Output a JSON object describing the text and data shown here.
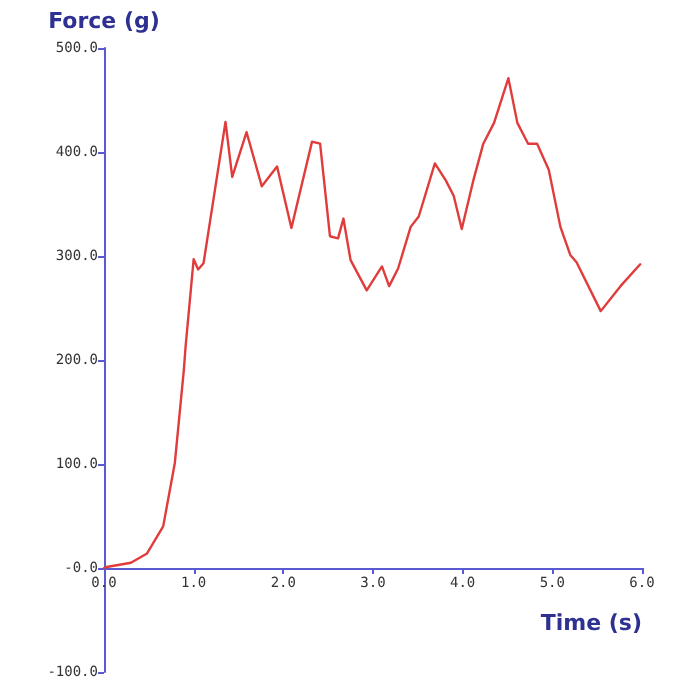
{
  "chart_data": {
    "type": "line",
    "xlabel": "Time (s)",
    "ylabel": "Force (g)",
    "grid": false,
    "marker": "none",
    "line_style": "solid",
    "xlim": [
      0,
      6
    ],
    "xticks": [
      {
        "value": 0,
        "label": "0.0"
      },
      {
        "value": 1,
        "label": "1.0"
      },
      {
        "value": 2,
        "label": "2.0"
      },
      {
        "value": 3,
        "label": "3.0"
      },
      {
        "value": 4,
        "label": "4.0"
      },
      {
        "value": 5,
        "label": "5.0"
      },
      {
        "value": 6,
        "label": "6.0"
      }
    ],
    "ylim": [
      -100,
      500
    ],
    "yticks": [
      {
        "value": -100,
        "label": "-100.0"
      },
      {
        "value": 0,
        "label": "-0.0"
      },
      {
        "value": 100,
        "label": "100.0"
      },
      {
        "value": 200,
        "label": "200.0"
      },
      {
        "value": 300,
        "label": "300.0"
      },
      {
        "value": 400,
        "label": "400.0"
      },
      {
        "value": 500,
        "label": "500.0"
      }
    ],
    "series": [
      {
        "color": "#e03c3c",
        "x": [
          0,
          0.03,
          0.3,
          0.48,
          0.66,
          0.79,
          0.89,
          0.91,
          1.0,
          1.05,
          1.11,
          1.355,
          1.43,
          1.59,
          1.76,
          1.93,
          2.09,
          2.32,
          2.41,
          2.52,
          2.61,
          2.67,
          2.75,
          2.93,
          3.1,
          3.18,
          3.28,
          3.42,
          3.51,
          3.69,
          3.81,
          3.9,
          3.99,
          4.12,
          4.23,
          4.35,
          4.51,
          4.61,
          4.73,
          4.83,
          4.96,
          5.09,
          5.2,
          5.27,
          5.54,
          5.76,
          5.98
        ],
        "values": [
          0,
          1,
          5,
          14,
          40,
          101,
          190,
          213,
          297,
          287,
          293,
          429,
          376,
          419,
          367,
          386,
          327,
          410,
          408,
          319,
          317,
          336,
          296,
          267,
          290,
          271,
          288,
          328,
          338,
          389,
          373,
          358,
          326,
          373,
          408,
          428,
          471,
          428,
          408,
          408,
          383,
          328,
          301,
          294,
          247,
          271,
          292
        ]
      }
    ]
  }
}
